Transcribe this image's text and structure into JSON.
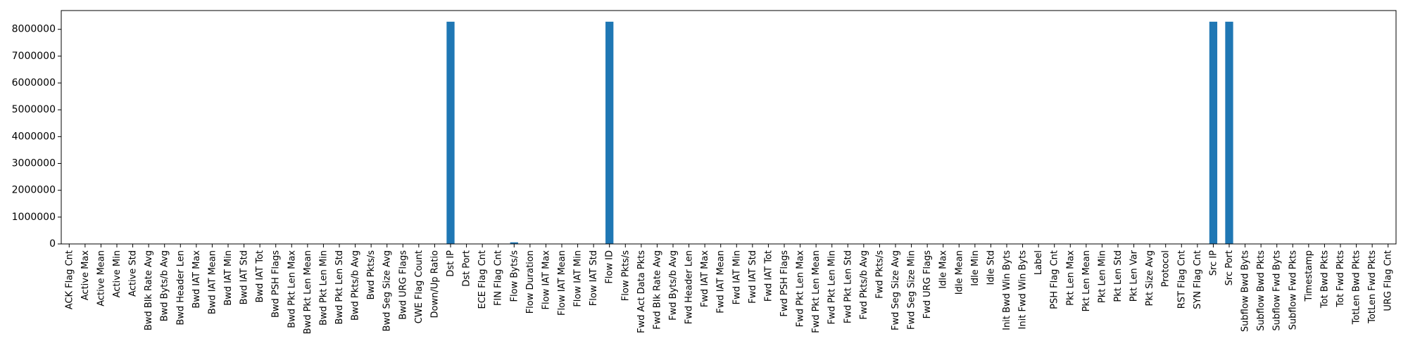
{
  "chart_data": {
    "type": "bar",
    "title": "",
    "xlabel": "",
    "ylabel": "",
    "ylim": [
      0,
      8700000
    ],
    "yticks": [
      0,
      1000000,
      2000000,
      3000000,
      4000000,
      5000000,
      6000000,
      7000000,
      8000000
    ],
    "ytick_labels": [
      "0",
      "1000000",
      "2000000",
      "3000000",
      "4000000",
      "5000000",
      "6000000",
      "7000000",
      "8000000"
    ],
    "grid": false,
    "legend": "none",
    "bar_color": "#1f77b4",
    "categories": [
      "ACK Flag Cnt",
      "Active Max",
      "Active Mean",
      "Active Min",
      "Active Std",
      "Bwd Blk Rate Avg",
      "Bwd Byts/b Avg",
      "Bwd Header Len",
      "Bwd IAT Max",
      "Bwd IAT Mean",
      "Bwd IAT Min",
      "Bwd IAT Std",
      "Bwd IAT Tot",
      "Bwd PSH Flags",
      "Bwd Pkt Len Max",
      "Bwd Pkt Len Mean",
      "Bwd Pkt Len Min",
      "Bwd Pkt Len Std",
      "Bwd Pkts/b Avg",
      "Bwd Pkts/s",
      "Bwd Seg Size Avg",
      "Bwd URG Flags",
      "CWE Flag Count",
      "Down/Up Ratio",
      "Dst IP",
      "Dst Port",
      "ECE Flag Cnt",
      "FIN Flag Cnt",
      "Flow Byts/s",
      "Flow Duration",
      "Flow IAT Max",
      "Flow IAT Mean",
      "Flow IAT Min",
      "Flow IAT Std",
      "Flow ID",
      "Flow Pkts/s",
      "Fwd Act Data Pkts",
      "Fwd Blk Rate Avg",
      "Fwd Byts/b Avg",
      "Fwd Header Len",
      "Fwd IAT Max",
      "Fwd IAT Mean",
      "Fwd IAT Min",
      "Fwd IAT Std",
      "Fwd IAT Tot",
      "Fwd PSH Flags",
      "Fwd Pkt Len Max",
      "Fwd Pkt Len Mean",
      "Fwd Pkt Len Min",
      "Fwd Pkt Len Std",
      "Fwd Pkts/b Avg",
      "Fwd Pkts/s",
      "Fwd Seg Size Avg",
      "Fwd Seg Size Min",
      "Fwd URG Flags",
      "Idle Max",
      "Idle Mean",
      "Idle Min",
      "Idle Std",
      "Init Bwd Win Byts",
      "Init Fwd Win Byts",
      "Label",
      "PSH Flag Cnt",
      "Pkt Len Max",
      "Pkt Len Mean",
      "Pkt Len Min",
      "Pkt Len Std",
      "Pkt Len Var",
      "Pkt Size Avg",
      "Protocol",
      "RST Flag Cnt",
      "SYN Flag Cnt",
      "Src IP",
      "Src Port",
      "Subflow Bwd Byts",
      "Subflow Bwd Pkts",
      "Subflow Fwd Byts",
      "Subflow Fwd Pkts",
      "Timestamp",
      "Tot Bwd Pkts",
      "Tot Fwd Pkts",
      "TotLen Bwd Pkts",
      "TotLen Fwd Pkts",
      "URG Flag Cnt"
    ],
    "values": [
      0,
      0,
      0,
      0,
      0,
      0,
      0,
      0,
      0,
      0,
      0,
      0,
      0,
      0,
      0,
      0,
      0,
      0,
      0,
      0,
      0,
      0,
      0,
      0,
      8284000,
      0,
      0,
      0,
      60000,
      0,
      0,
      0,
      0,
      0,
      8284000,
      0,
      0,
      0,
      0,
      0,
      0,
      0,
      0,
      0,
      0,
      0,
      0,
      0,
      0,
      0,
      0,
      0,
      0,
      0,
      0,
      0,
      0,
      0,
      0,
      0,
      0,
      0,
      0,
      0,
      0,
      0,
      0,
      0,
      0,
      0,
      0,
      0,
      8284000,
      8284000,
      0,
      0,
      0,
      0,
      0,
      0,
      0,
      0,
      0,
      0
    ]
  }
}
